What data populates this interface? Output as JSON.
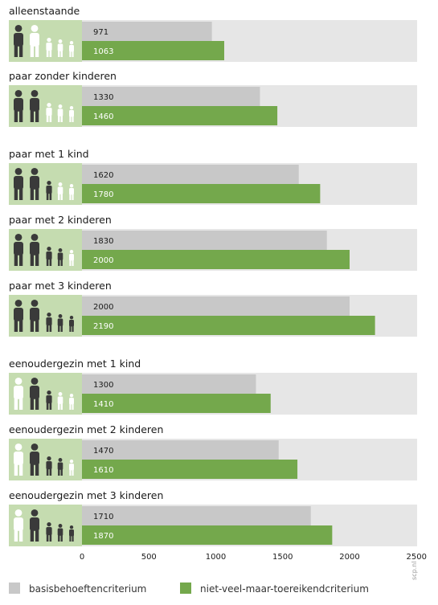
{
  "chart_data": {
    "type": "bar",
    "orientation": "horizontal",
    "categories": [
      "alleenstaande",
      "paar zonder kinderen",
      "paar met 1 kind",
      "paar met 2 kinderen",
      "paar met 3 kinderen",
      "eenoudergezin met 1 kind",
      "eenoudergezin met 2 kinderen",
      "eenoudergezin met 3 kinderen"
    ],
    "series": [
      {
        "name": "basisbehoeftencriterium",
        "color": "#c8c8c8",
        "values": [
          971,
          1330,
          1620,
          1830,
          2000,
          1300,
          1470,
          1710
        ]
      },
      {
        "name": "niet-veel-maar-toereikendcriterium",
        "color": "#74a84c",
        "values": [
          1063,
          1460,
          1780,
          2000,
          2190,
          1410,
          1610,
          1870
        ]
      }
    ],
    "xlim": [
      0,
      2500
    ],
    "xticks": [
      0,
      500,
      1000,
      1500,
      2000,
      2500
    ],
    "background_color": "#e6e6e6",
    "icon_panel_color": "#c5dcb0",
    "households": [
      {
        "adults": [
          "dark",
          "light"
        ],
        "children": [
          "light",
          "light",
          "light"
        ]
      },
      {
        "adults": [
          "dark",
          "dark"
        ],
        "children": [
          "light",
          "light",
          "light"
        ]
      },
      {
        "adults": [
          "dark",
          "dark"
        ],
        "children": [
          "dark",
          "light",
          "light"
        ]
      },
      {
        "adults": [
          "dark",
          "dark"
        ],
        "children": [
          "dark",
          "dark",
          "light"
        ]
      },
      {
        "adults": [
          "dark",
          "dark"
        ],
        "children": [
          "dark",
          "dark",
          "dark"
        ]
      },
      {
        "adults": [
          "light",
          "dark"
        ],
        "children": [
          "dark",
          "light",
          "light"
        ]
      },
      {
        "adults": [
          "light",
          "dark"
        ],
        "children": [
          "dark",
          "dark",
          "light"
        ]
      },
      {
        "adults": [
          "light",
          "dark"
        ],
        "children": [
          "dark",
          "dark",
          "dark"
        ]
      }
    ],
    "legend": {
      "placement": "bottom",
      "entries": [
        "basisbehoeftencriterium",
        "niet-veel-maar-toereikendcriterium"
      ]
    },
    "credit": "scp.nl"
  }
}
